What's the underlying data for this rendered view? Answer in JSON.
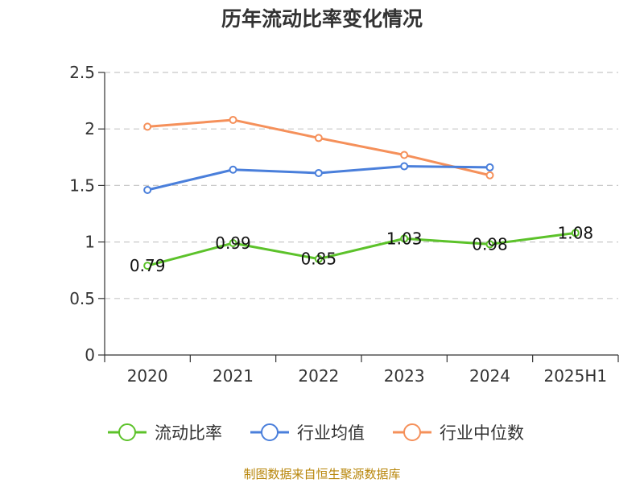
{
  "chart_data": {
    "type": "line",
    "title": "历年流动比率变化情况",
    "categories": [
      "2020",
      "2021",
      "2022",
      "2023",
      "2024",
      "2025H1"
    ],
    "ylim": [
      0,
      2.5
    ],
    "yticks": [
      "0",
      "0.5",
      "1",
      "1.5",
      "2",
      "2.5"
    ],
    "grid": true,
    "legend_position": "bottom",
    "series": [
      {
        "name": "流动比率",
        "color": "#5cc22a",
        "values": [
          0.79,
          0.99,
          0.85,
          1.03,
          0.98,
          1.08
        ],
        "labels": [
          "0.79",
          "0.99",
          "0.85",
          "1.03",
          "0.98",
          "1.08"
        ]
      },
      {
        "name": "行业均值",
        "color": "#4a7fdb",
        "values": [
          1.46,
          1.64,
          1.61,
          1.67,
          1.66,
          null
        ]
      },
      {
        "name": "行业中位数",
        "color": "#f5905a",
        "values": [
          2.02,
          2.08,
          1.92,
          1.77,
          1.59,
          null
        ]
      }
    ]
  },
  "footer": {
    "source": "制图数据来自恒生聚源数据库"
  }
}
